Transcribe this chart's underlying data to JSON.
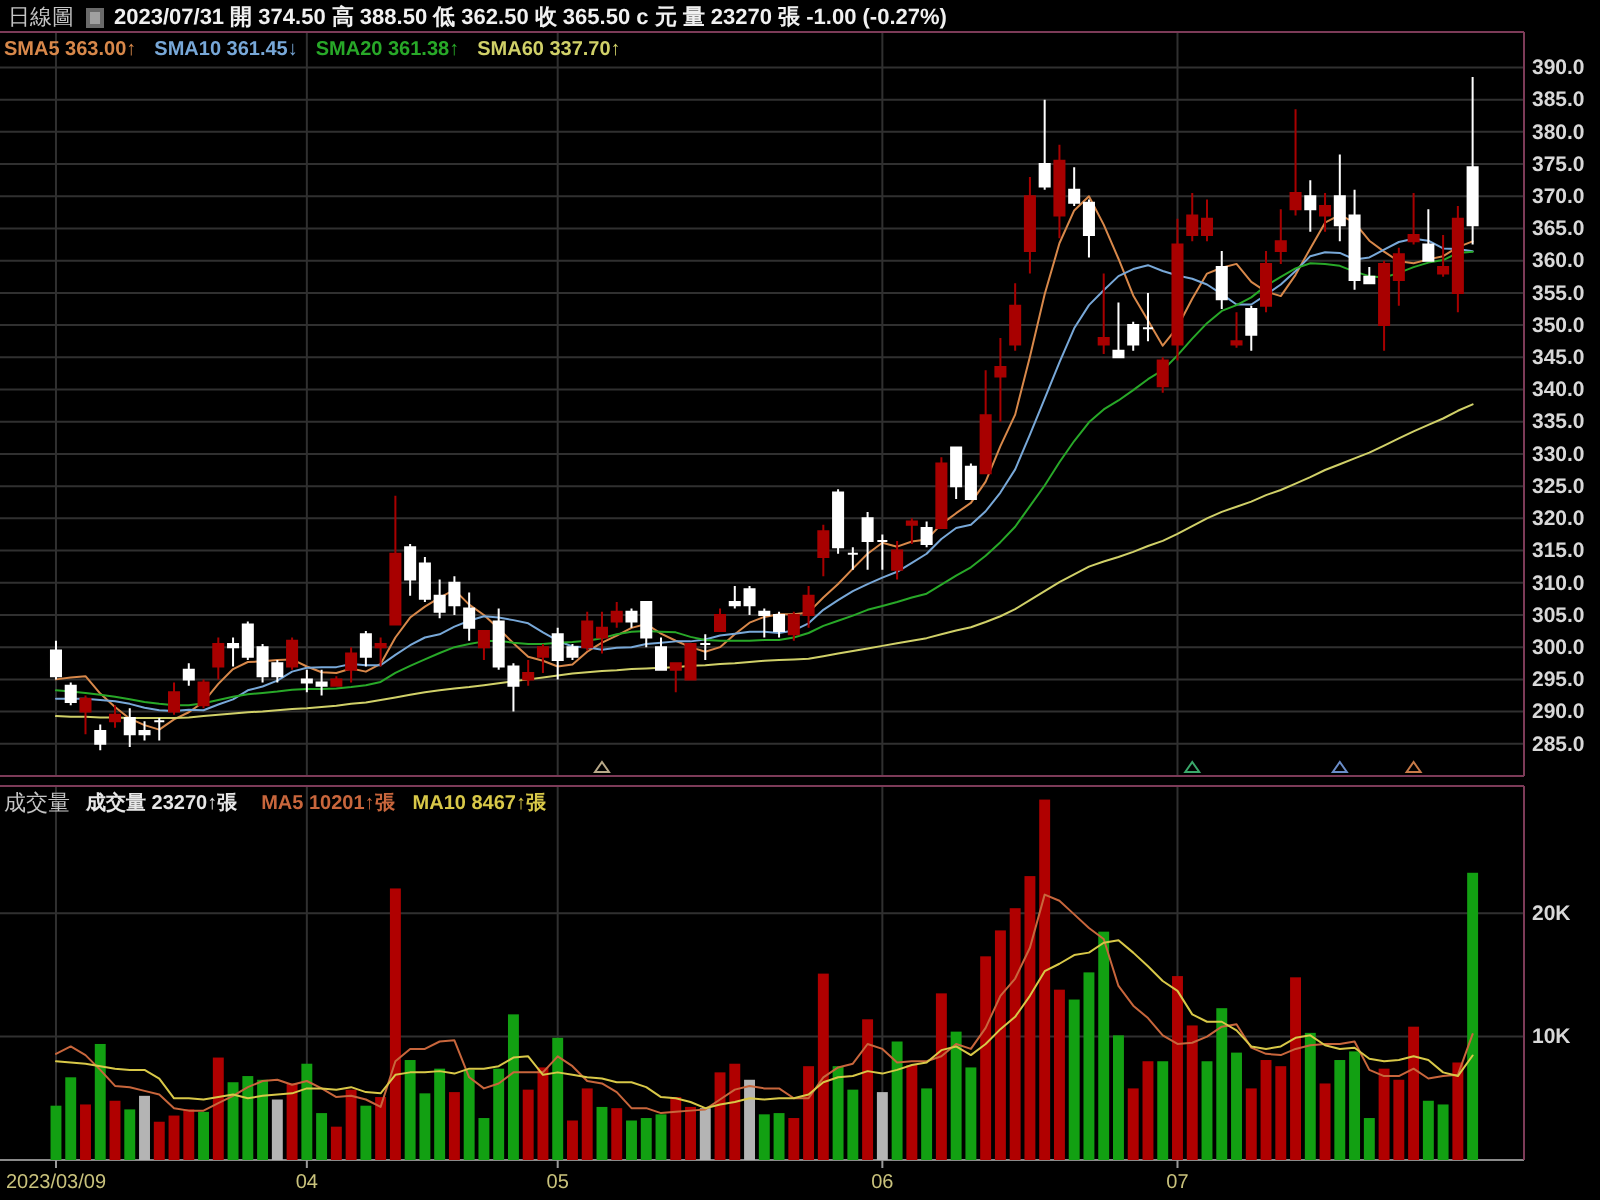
{
  "chart_data": [
    {
      "type": "candlestick",
      "title": "日線圖",
      "subtitle": "2023/07/31 開 374.50 高 388.50 低 362.50 收 365.50 c 元 量 23270 張 -1.00 (-0.27%)",
      "categories": [
        "2023/03/09",
        null,
        null,
        null,
        null,
        null,
        null,
        null,
        null,
        null,
        null,
        null,
        null,
        null,
        null,
        null,
        null,
        "04",
        null,
        null,
        null,
        null,
        null,
        null,
        null,
        null,
        null,
        null,
        null,
        null,
        null,
        null,
        null,
        null,
        "05",
        null,
        null,
        null,
        null,
        null,
        null,
        null,
        null,
        null,
        null,
        null,
        null,
        null,
        null,
        null,
        null,
        null,
        null,
        null,
        null,
        null,
        "06",
        null,
        null,
        null,
        null,
        null,
        null,
        null,
        null,
        null,
        null,
        null,
        null,
        null,
        null,
        null,
        null,
        null,
        null,
        null,
        "07",
        null,
        null,
        null,
        null,
        null,
        null,
        null,
        null,
        null,
        null,
        null,
        null,
        null,
        null,
        null,
        null,
        null,
        null,
        null,
        null
      ],
      "ohlc": [
        [
          299.5,
          301,
          295,
          295.5
        ],
        [
          294,
          294.5,
          291,
          291.5
        ],
        [
          290,
          292.5,
          286.5,
          292
        ],
        [
          287,
          288,
          284,
          285
        ],
        [
          288.5,
          291,
          287.5,
          289.5
        ],
        [
          289,
          290.5,
          284.5,
          286.5
        ],
        [
          287,
          288.5,
          285.5,
          286.5
        ],
        [
          288.5,
          289,
          285.5,
          288.5
        ],
        [
          290,
          294.5,
          289.5,
          293
        ],
        [
          296.5,
          297.5,
          294,
          295
        ],
        [
          291,
          295,
          290.5,
          294.5
        ],
        [
          297,
          301.5,
          295,
          300.5
        ],
        [
          300.5,
          301.5,
          297,
          300
        ],
        [
          303.5,
          304,
          298,
          298.5
        ],
        [
          300,
          300.5,
          294.5,
          295.5
        ],
        [
          297.5,
          298,
          294.5,
          295.5
        ],
        [
          297,
          301.5,
          296.5,
          301
        ],
        [
          295,
          296.5,
          293,
          294.5
        ],
        [
          294.5,
          296.5,
          292.5,
          294
        ],
        [
          294,
          295.5,
          294,
          295
        ],
        [
          296.5,
          300,
          294.5,
          299
        ],
        [
          302,
          302.5,
          297,
          298.5
        ],
        [
          300,
          301.5,
          297,
          300.5
        ],
        [
          303.5,
          323.5,
          303.5,
          314.5
        ],
        [
          315.5,
          316,
          308,
          310.5
        ],
        [
          313,
          314,
          307,
          307.5
        ],
        [
          308,
          310.5,
          304.5,
          305.5
        ],
        [
          310,
          311,
          305,
          306.5
        ],
        [
          306,
          308.5,
          301,
          303
        ],
        [
          300,
          302.5,
          298,
          302.5
        ],
        [
          304,
          306,
          296.5,
          297
        ],
        [
          297,
          297.5,
          290,
          294
        ],
        [
          295,
          298,
          294,
          296
        ],
        [
          298.5,
          300.5,
          296,
          300
        ],
        [
          302,
          303,
          295,
          298
        ],
        [
          300,
          300.5,
          298,
          298.5
        ],
        [
          300,
          305.5,
          299.5,
          304
        ],
        [
          301.5,
          305.5,
          299,
          303
        ],
        [
          304,
          307,
          303,
          305.5
        ],
        [
          305.5,
          306,
          303,
          304
        ],
        [
          307,
          307,
          300,
          301.5
        ],
        [
          300,
          301.5,
          296.5,
          296.5
        ],
        [
          296.5,
          297.5,
          293,
          297.5
        ],
        [
          295,
          300.5,
          295,
          300.5
        ],
        [
          300.5,
          302,
          298,
          300.5
        ],
        [
          302.5,
          306,
          302.5,
          305
        ],
        [
          307,
          309.5,
          306,
          306.5
        ],
        [
          309,
          309.5,
          305,
          306.5
        ],
        [
          305.5,
          306,
          301.5,
          305
        ],
        [
          305,
          305.5,
          301.5,
          302.5
        ],
        [
          302,
          305.5,
          301,
          305
        ],
        [
          305,
          309.5,
          303,
          308
        ],
        [
          314,
          319,
          311,
          318
        ],
        [
          324,
          324.5,
          314.5,
          315.5
        ],
        [
          314.5,
          315.5,
          312,
          314.5
        ],
        [
          320,
          321,
          312,
          316.5
        ],
        [
          316.5,
          317.5,
          312,
          316.5
        ],
        [
          312,
          316.5,
          310.5,
          315
        ],
        [
          319,
          320,
          316,
          319.5
        ],
        [
          318.5,
          319.5,
          315.5,
          316
        ],
        [
          318.5,
          329.5,
          318.5,
          328.5
        ],
        [
          331,
          331,
          323,
          325
        ],
        [
          328,
          328.5,
          323,
          323
        ],
        [
          327,
          343,
          327,
          336
        ],
        [
          342,
          348,
          335,
          343.5
        ],
        [
          347,
          356.5,
          346,
          353
        ],
        [
          361.5,
          373,
          358,
          370
        ],
        [
          375,
          385,
          371,
          371.5
        ],
        [
          367,
          378,
          363.5,
          375.5
        ],
        [
          371,
          374.5,
          368.5,
          369
        ],
        [
          369,
          369.5,
          360.5,
          364
        ],
        [
          347,
          358,
          345.5,
          348
        ],
        [
          346,
          353.5,
          345,
          345
        ],
        [
          350,
          350.5,
          346,
          347
        ],
        [
          349.5,
          355,
          347.5,
          349.5
        ],
        [
          340.5,
          345,
          339.5,
          344.5
        ],
        [
          347,
          366.5,
          344.5,
          362.5
        ],
        [
          364,
          370.5,
          363,
          367
        ],
        [
          364,
          369.5,
          363,
          366.5
        ],
        [
          359,
          361.5,
          352.5,
          354
        ],
        [
          347,
          352,
          346.5,
          347.5
        ],
        [
          352.5,
          353,
          346,
          348.5
        ],
        [
          353,
          361.5,
          352,
          359.5
        ],
        [
          361.5,
          368,
          359.5,
          363
        ],
        [
          368,
          383.5,
          367,
          370.5
        ],
        [
          370,
          372.5,
          364.5,
          368
        ],
        [
          367,
          370.5,
          364.5,
          368.5
        ],
        [
          370,
          376.5,
          363,
          365.5
        ],
        [
          367,
          371,
          355.5,
          357
        ],
        [
          357.5,
          359,
          356.5,
          356.5
        ],
        [
          350,
          360,
          346,
          359.5
        ],
        [
          357,
          362,
          353,
          361
        ],
        [
          363,
          370.5,
          362.5,
          364
        ],
        [
          362.5,
          368,
          360,
          360
        ],
        [
          358,
          364,
          357.5,
          359
        ],
        [
          355,
          368.5,
          352,
          366.5
        ],
        [
          374.5,
          388.5,
          362.5,
          365.5
        ]
      ],
      "colors": [
        "#ffffff",
        "#ffffff",
        "#a80000",
        "#ffffff",
        "#a80000",
        "#ffffff",
        "#ffffff",
        "#ffffff",
        "#a80000",
        "#ffffff",
        "#a80000",
        "#a80000",
        "#ffffff",
        "#ffffff",
        "#ffffff",
        "#ffffff",
        "#a80000",
        "#ffffff",
        "#ffffff",
        "#a80000",
        "#a80000",
        "#ffffff",
        "#a80000",
        "#a80000",
        "#ffffff",
        "#ffffff",
        "#ffffff",
        "#ffffff",
        "#ffffff",
        "#a80000",
        "#ffffff",
        "#ffffff",
        "#a80000",
        "#a80000",
        "#ffffff",
        "#ffffff",
        "#a80000",
        "#a80000",
        "#a80000",
        "#ffffff",
        "#ffffff",
        "#ffffff",
        "#a80000",
        "#a80000",
        "#ffffff",
        "#a80000",
        "#ffffff",
        "#ffffff",
        "#ffffff",
        "#ffffff",
        "#a80000",
        "#a80000",
        "#a80000",
        "#ffffff",
        "#ffffff",
        "#ffffff",
        "#ffffff",
        "#a80000",
        "#a80000",
        "#ffffff",
        "#a80000",
        "#ffffff",
        "#ffffff",
        "#a80000",
        "#a80000",
        "#a80000",
        "#a80000",
        "#ffffff",
        "#a80000",
        "#ffffff",
        "#ffffff",
        "#a80000",
        "#ffffff",
        "#ffffff",
        "#ffffff",
        "#a80000",
        "#a80000",
        "#a80000",
        "#a80000",
        "#ffffff",
        "#a80000",
        "#ffffff",
        "#a80000",
        "#a80000",
        "#a80000",
        "#ffffff",
        "#a80000",
        "#ffffff",
        "#ffffff",
        "#ffffff",
        "#a80000",
        "#a80000",
        "#a80000",
        "#ffffff",
        "#a80000",
        "#a80000",
        "#ffffff"
      ],
      "series": [
        {
          "name": "SMA5 363.00↑",
          "type": "line",
          "color": "#d8884a",
          "values": [
            295,
            295.3,
            295.5,
            292.8,
            290.7,
            288.9,
            287.9,
            287.2,
            288.8,
            289.9,
            291.5,
            294.3,
            296.6,
            297.7,
            297.8,
            298,
            298.1,
            297,
            296.1,
            296,
            296.7,
            296.2,
            297.4,
            301.5,
            304.6,
            306.3,
            307.7,
            308.9,
            306.6,
            305,
            302.9,
            300.6,
            298.5,
            297.9,
            297,
            297.3,
            299.3,
            300.7,
            301.8,
            303,
            303.6,
            302.1,
            301,
            300,
            299.3,
            300,
            302,
            303.8,
            304.7,
            305.1,
            305.1,
            305.4,
            307.7,
            309.8,
            312.2,
            314.5,
            316.2,
            315.6,
            316.4,
            316.7,
            319.1,
            320.8,
            322.4,
            325.7,
            331.2,
            336.1,
            345.1,
            354.8,
            362.7,
            367.8,
            370,
            365.6,
            360.3,
            354.6,
            350.7,
            346.8,
            349.7,
            354.1,
            358,
            358.9,
            359.5,
            356.7,
            355.2,
            354.5,
            357.8,
            361.9,
            365.9,
            367.1,
            365.9,
            363.1,
            361.4,
            359.9,
            359.6,
            360.2,
            360.7,
            362.1,
            363
          ]
        },
        {
          "name": "SMA10 361.45↓",
          "type": "line",
          "color": "#78a8d8",
          "values": [
            292,
            292,
            292,
            291.8,
            291.6,
            291.2,
            290.6,
            290.2,
            290.1,
            290.3,
            290.2,
            291.1,
            291.9,
            293.3,
            293.9,
            294.8,
            296.2,
            296.8,
            296.9,
            296.9,
            297.4,
            297.2,
            297.2,
            298.8,
            300.3,
            301.5,
            302,
            303.2,
            304.1,
            304.8,
            304.6,
            304.2,
            303.7,
            302.3,
            301,
            300.1,
            300,
            299.6,
            299.9,
            300,
            300.5,
            300.7,
            300.9,
            300.9,
            301.2,
            301.8,
            302.1,
            302.4,
            302.4,
            302.2,
            302.6,
            303.7,
            305.8,
            307.3,
            308.7,
            309.8,
            310.8,
            311.7,
            313.1,
            314.5,
            316.8,
            318.5,
            319,
            321.1,
            324,
            327.6,
            333,
            338.6,
            344.2,
            349.5,
            353.1,
            355.4,
            357.6,
            358.7,
            359.3,
            358.4,
            357.7,
            357.2,
            356.3,
            354.8,
            353.2,
            353.2,
            354.7,
            356.3,
            358.4,
            360.7,
            361.3,
            361.2,
            360.2,
            360.5,
            361.7,
            362.9,
            363.4,
            363.1,
            361.9,
            361.8,
            361.45
          ]
        },
        {
          "name": "SMA20 361.38↑",
          "type": "line",
          "color": "#28a828",
          "values": [
            293.3,
            293.1,
            292.9,
            292.6,
            292.3,
            291.9,
            291.5,
            291.2,
            291,
            291,
            291.3,
            291.8,
            292.3,
            292.7,
            292.9,
            293.1,
            293.4,
            293.5,
            293.5,
            293.6,
            293.8,
            294.1,
            294.6,
            296,
            297.1,
            298.1,
            299.1,
            300,
            300.5,
            300.9,
            301,
            300.7,
            300.5,
            300.5,
            300.7,
            300.8,
            301,
            301.4,
            302,
            302.4,
            302.5,
            302.4,
            302.3,
            301.6,
            301.1,
            301,
            301,
            301,
            301.1,
            301.1,
            301.5,
            302.2,
            303.3,
            304.1,
            304.9,
            305.8,
            306.4,
            307,
            307.7,
            308.3,
            309.7,
            311.1,
            312.4,
            314.2,
            316.3,
            318.7,
            321.9,
            325.1,
            328.7,
            332,
            334.9,
            336.9,
            338.3,
            339.9,
            341.6,
            343,
            345.3,
            347.9,
            350.3,
            352.2,
            353.1,
            354.3,
            356.1,
            357.5,
            358.8,
            359.6,
            359.5,
            359.2,
            358.3,
            357.6,
            357.4,
            358.1,
            359,
            359.7,
            360.1,
            361.2,
            361.38
          ]
        },
        {
          "name": "SMA60 337.70↑",
          "type": "line",
          "color": "#d0d068",
          "values": [
            289.3,
            289.2,
            289.2,
            289.1,
            289.1,
            289,
            289,
            289,
            289,
            289.1,
            289.3,
            289.5,
            289.7,
            289.9,
            290,
            290.2,
            290.4,
            290.5,
            290.7,
            290.9,
            291.2,
            291.4,
            291.8,
            292.2,
            292.6,
            293,
            293.3,
            293.6,
            293.8,
            294.1,
            294.4,
            294.7,
            295,
            295.3,
            295.6,
            295.9,
            296.1,
            296.3,
            296.4,
            296.6,
            296.7,
            296.8,
            296.9,
            297.1,
            297.2,
            297.4,
            297.5,
            297.7,
            297.9,
            298,
            298.1,
            298.2,
            298.6,
            299,
            299.4,
            299.8,
            300.2,
            300.6,
            301,
            301.4,
            302,
            302.6,
            303.1,
            303.9,
            304.8,
            305.9,
            307.3,
            308.7,
            310.1,
            311.3,
            312.5,
            313.3,
            314,
            314.8,
            315.7,
            316.5,
            317.6,
            318.8,
            320,
            321,
            321.8,
            322.6,
            323.6,
            324.4,
            325.4,
            326.4,
            327.5,
            328.4,
            329.3,
            330.2,
            331.3,
            332.4,
            333.5,
            334.5,
            335.5,
            336.7,
            337.7
          ]
        }
      ],
      "ylim": [
        280,
        395.5
      ],
      "yticks": [
        {
          "value": 285,
          "label": "285.0"
        },
        {
          "value": 290,
          "label": "290.0"
        },
        {
          "value": 295,
          "label": "295.0"
        },
        {
          "value": 300,
          "label": "300.0"
        },
        {
          "value": 305,
          "label": "305.0"
        },
        {
          "value": 310,
          "label": "310.0"
        },
        {
          "value": 315,
          "label": "315.0"
        },
        {
          "value": 320,
          "label": "320.0"
        },
        {
          "value": 325,
          "label": "325.0"
        },
        {
          "value": 330,
          "label": "330.0"
        },
        {
          "value": 335,
          "label": "335.0"
        },
        {
          "value": 340,
          "label": "340.0"
        },
        {
          "value": 345,
          "label": "345.0"
        },
        {
          "value": 350,
          "label": "350.0"
        },
        {
          "value": 355,
          "label": "355.0"
        },
        {
          "value": 360,
          "label": "360.0"
        },
        {
          "value": 365,
          "label": "365.0"
        },
        {
          "value": 370,
          "label": "370.0"
        },
        {
          "value": 375,
          "label": "375.0"
        },
        {
          "value": 380,
          "label": "380.0"
        },
        {
          "value": 385,
          "label": "385.0"
        },
        {
          "value": 390,
          "label": "390.0"
        }
      ],
      "grid": true,
      "legend": "top left",
      "tick_labels": "y"
    },
    {
      "type": "bar",
      "title": "成交量",
      "annotations": [
        "成交量 23270↑張"
      ],
      "categories": [
        "2023/03/09",
        null,
        null,
        null,
        null,
        null,
        null,
        null,
        null,
        null,
        null,
        null,
        null,
        null,
        null,
        null,
        null,
        "04",
        null,
        null,
        null,
        null,
        null,
        null,
        null,
        null,
        null,
        null,
        null,
        null,
        null,
        null,
        null,
        null,
        "05",
        null,
        null,
        null,
        null,
        null,
        null,
        null,
        null,
        null,
        null,
        null,
        null,
        null,
        null,
        null,
        null,
        null,
        null,
        null,
        null,
        null,
        "06",
        null,
        null,
        null,
        null,
        null,
        null,
        null,
        null,
        null,
        null,
        null,
        null,
        null,
        null,
        null,
        null,
        null,
        null,
        null,
        "07",
        null,
        null,
        null,
        null,
        null,
        null,
        null,
        null,
        null,
        null,
        null,
        null,
        null,
        null,
        null,
        null,
        null,
        null,
        null,
        null
      ],
      "series": [
        {
          "type": "bar",
          "values": [
            4400,
            6700,
            4500,
            9400,
            4800,
            4100,
            5200,
            3100,
            3600,
            4100,
            3900,
            8300,
            6300,
            6800,
            6500,
            4900,
            6200,
            7800,
            3800,
            2700,
            5700,
            4400,
            5100,
            22000,
            8100,
            5400,
            7400,
            5500,
            7300,
            3400,
            7400,
            11800,
            5700,
            7500,
            9900,
            3200,
            5800,
            4300,
            4200,
            3200,
            3400,
            3700,
            5100,
            4300,
            4200,
            7100,
            7800,
            6500,
            3700,
            3800,
            3400,
            7600,
            15100,
            7600,
            5700,
            11400,
            5500,
            9600,
            7700,
            5800,
            13500,
            10400,
            7500,
            16500,
            18600,
            20400,
            23000,
            29200,
            13800,
            13000,
            15200,
            18500,
            10100,
            5800,
            8000,
            8000,
            14900,
            10900,
            8000,
            12300,
            8700,
            5800,
            8100,
            7600,
            14800,
            10300,
            6200,
            8100,
            8800,
            3400,
            7400,
            6500,
            10800,
            4800,
            4500,
            7900,
            23270
          ],
          "colors": [
            "#12a012",
            "#12a012",
            "#b00000",
            "#12a012",
            "#b00000",
            "#12a012",
            "#b4b4b4",
            "#b00000",
            "#b00000",
            "#b00000",
            "#12a012",
            "#b00000",
            "#12a012",
            "#12a012",
            "#12a012",
            "#b4b4b4",
            "#b00000",
            "#12a012",
            "#12a012",
            "#b00000",
            "#b00000",
            "#12a012",
            "#b00000",
            "#b00000",
            "#12a012",
            "#12a012",
            "#12a012",
            "#b00000",
            "#12a012",
            "#12a012",
            "#12a012",
            "#12a012",
            "#b00000",
            "#b00000",
            "#12a012",
            "#b00000",
            "#b00000",
            "#12a012",
            "#b00000",
            "#12a012",
            "#12a012",
            "#12a012",
            "#b00000",
            "#b00000",
            "#b4b4b4",
            "#b00000",
            "#b00000",
            "#b4b4b4",
            "#12a012",
            "#12a012",
            "#b00000",
            "#b00000",
            "#b00000",
            "#12a012",
            "#12a012",
            "#b00000",
            "#b4b4b4",
            "#12a012",
            "#b00000",
            "#12a012",
            "#b00000",
            "#12a012",
            "#12a012",
            "#b00000",
            "#b00000",
            "#b00000",
            "#b00000",
            "#b00000",
            "#b00000",
            "#12a012",
            "#12a012",
            "#12a012",
            "#12a012",
            "#b00000",
            "#b00000",
            "#12a012",
            "#b00000",
            "#b00000",
            "#12a012",
            "#12a012",
            "#12a012",
            "#b00000",
            "#b00000",
            "#b00000",
            "#b00000",
            "#12a012",
            "#b00000",
            "#12a012",
            "#12a012",
            "#12a012",
            "#b00000",
            "#b00000",
            "#b00000",
            "#12a012",
            "#12a012",
            "#b00000",
            "#12a012"
          ]
        },
        {
          "name": "MA5 10201↑張",
          "type": "line",
          "color": "#c8663c",
          "values": [
            8600,
            9200,
            8500,
            7300,
            6000,
            5900,
            5600,
            5300,
            4200,
            4000,
            4000,
            4600,
            5200,
            5900,
            6400,
            6500,
            6100,
            6400,
            5800,
            5100,
            5200,
            4900,
            4300,
            8000,
            9000,
            9000,
            9600,
            9700,
            6700,
            5800,
            6200,
            7100,
            7100,
            7100,
            8400,
            7600,
            6400,
            6200,
            5500,
            4200,
            4200,
            3800,
            3900,
            4000,
            4100,
            4900,
            5700,
            6000,
            5800,
            5800,
            5000,
            5000,
            6700,
            7500,
            7800,
            9400,
            9000,
            7900,
            8000,
            8000,
            8400,
            9400,
            9000,
            10700,
            13300,
            14700,
            17200,
            21500,
            21000,
            19900,
            18800,
            17900,
            14100,
            12500,
            11500,
            10100,
            9400,
            9500,
            10000,
            10800,
            11000,
            9100,
            8600,
            8500,
            9000,
            9300,
            9400,
            9400,
            9600,
            7300,
            6800,
            6800,
            7400,
            6600,
            6800,
            6900,
            10201
          ]
        },
        {
          "name": "MA10 8467↑張",
          "type": "line",
          "color": "#d8c848",
          "values": [
            8000,
            7900,
            7800,
            7600,
            7400,
            7300,
            7300,
            6600,
            5000,
            5000,
            4900,
            5100,
            5300,
            5000,
            5200,
            5300,
            5400,
            5800,
            5800,
            5700,
            5900,
            5500,
            5400,
            6900,
            7100,
            7100,
            7200,
            7000,
            7400,
            7400,
            7600,
            8300,
            8400,
            6900,
            7100,
            6900,
            6700,
            6600,
            6300,
            6300,
            5900,
            5100,
            5000,
            4700,
            4200,
            4500,
            4700,
            5000,
            4900,
            5000,
            5000,
            5300,
            6300,
            6700,
            6800,
            7200,
            7000,
            7300,
            7700,
            7900,
            8900,
            9200,
            8500,
            9400,
            10600,
            11600,
            13300,
            15300,
            15900,
            16600,
            16800,
            17600,
            17800,
            16800,
            15700,
            14500,
            13700,
            11800,
            11200,
            11200,
            10500,
            9200,
            9000,
            9200,
            9900,
            10100,
            9300,
            9000,
            9100,
            8200,
            8000,
            8100,
            8400,
            8100,
            7100,
            6800,
            8467
          ]
        }
      ],
      "ylim": [
        0,
        30300
      ],
      "yticks": [
        {
          "value": 10000,
          "label": "10K"
        },
        {
          "value": 20000,
          "label": "20K"
        }
      ],
      "grid": true,
      "legend": "top left"
    }
  ]
}
